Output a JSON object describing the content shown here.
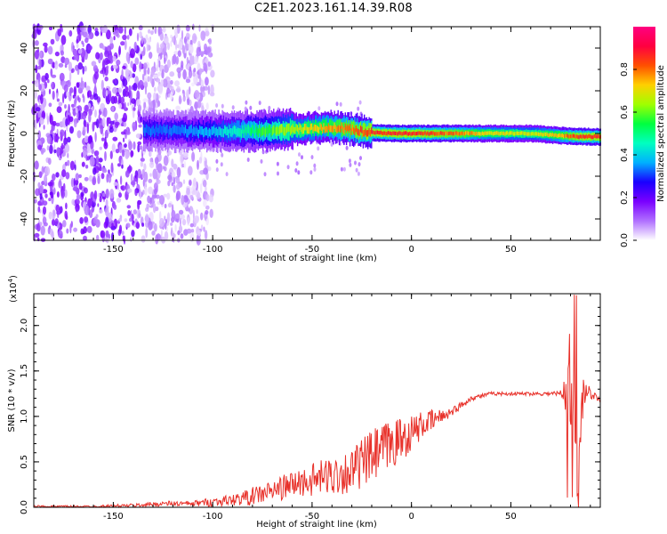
{
  "title": "C2E1.2023.161.14.39.R08",
  "chart_data": [
    {
      "type": "heatmap",
      "xlabel": "Height of straight line (km)",
      "ylabel": "Frequency (Hz)",
      "xlim": [
        -190,
        95
      ],
      "ylim": [
        -50,
        50
      ],
      "xticks": [
        -150,
        -100,
        -50,
        0,
        50
      ],
      "yticks": [
        -40,
        -20,
        0,
        20,
        40
      ],
      "colorbar": {
        "label": "Normalized spectral amplitude",
        "range": [
          0,
          1
        ],
        "ticks": [
          "0.0",
          "0.2",
          "0.4",
          "0.6",
          "0.8"
        ],
        "colors": [
          "#ffffff",
          "#b070ff",
          "#7a00ff",
          "#1a00ff",
          "#00b0ff",
          "#00ffc0",
          "#00ff40",
          "#a0ff00",
          "#ffd000",
          "#ff5000",
          "#ff0040",
          "#ff0080"
        ]
      },
      "ridge": {
        "x": [
          -135,
          -120,
          -100,
          -80,
          -60,
          -40,
          -30,
          -20,
          -10,
          0,
          20,
          40,
          60,
          75,
          85,
          95
        ],
        "center_frequency": [
          1.5,
          1,
          1,
          1,
          2,
          3,
          2,
          0.5,
          0,
          0,
          0,
          0,
          0,
          -1,
          -1.5,
          -1.5
        ],
        "peak_amplitude": [
          0.35,
          0.35,
          0.4,
          0.55,
          0.7,
          0.8,
          0.85,
          0.9,
          0.9,
          0.9,
          0.85,
          0.75,
          0.7,
          0.8,
          0.9,
          0.9
        ]
      },
      "noise_region": {
        "x_from": -190,
        "x_to": -100,
        "amplitude": 0.15
      }
    },
    {
      "type": "line",
      "xlabel": "Height of straight line (km)",
      "ylabel": "SNR (10 * v/v)",
      "multiplier_label": "(x10",
      "multiplier_exp": "4",
      "xlim": [
        -190,
        95
      ],
      "ylim": [
        0,
        2.35
      ],
      "xticks": [
        -150,
        -100,
        -50,
        0,
        50
      ],
      "yticks": [
        "0.0",
        "0.5",
        "1.0",
        "1.5",
        "2.0"
      ],
      "ytick_values": [
        0,
        0.5,
        1.0,
        1.5,
        2.0
      ],
      "color": "#e8312a",
      "x": [
        -190,
        -160,
        -140,
        -125,
        -110,
        -100,
        -90,
        -80,
        -70,
        -60,
        -50,
        -40,
        -30,
        -25,
        -20,
        -15,
        -10,
        -5,
        0,
        5,
        10,
        15,
        20,
        25,
        30,
        40,
        50,
        60,
        70,
        75,
        78,
        80,
        82,
        84,
        86,
        88,
        90,
        95
      ],
      "y": [
        0.01,
        0.01,
        0.02,
        0.04,
        0.04,
        0.06,
        0.08,
        0.12,
        0.18,
        0.25,
        0.3,
        0.35,
        0.4,
        0.48,
        0.55,
        0.62,
        0.7,
        0.75,
        0.82,
        0.9,
        0.95,
        1.0,
        1.05,
        1.12,
        1.2,
        1.25,
        1.25,
        1.25,
        1.25,
        1.25,
        1.3,
        1.5,
        1.0,
        0.4,
        1.2,
        1.3,
        1.25,
        1.2
      ],
      "noise_amplitude": [
        0.01,
        0.01,
        0.02,
        0.03,
        0.03,
        0.05,
        0.06,
        0.1,
        0.12,
        0.15,
        0.18,
        0.22,
        0.25,
        0.28,
        0.3,
        0.3,
        0.28,
        0.25,
        0.2,
        0.15,
        0.12,
        0.08,
        0.05,
        0.04,
        0.03,
        0.02,
        0.02,
        0.02,
        0.02,
        0.05,
        0.3,
        0.6,
        0.5,
        0.6,
        0.3,
        0.1,
        0.06,
        0.05
      ]
    }
  ]
}
